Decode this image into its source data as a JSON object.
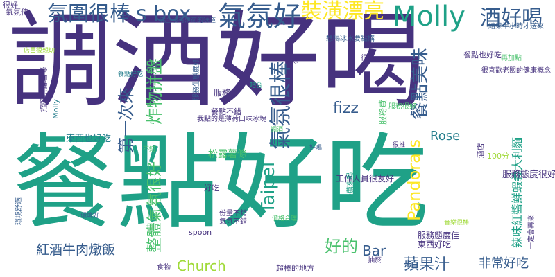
{
  "colors": {
    "background": "#ffffff",
    "purple": "#46327e",
    "navy": "#365c8d",
    "blue": "#277f8e",
    "teal": "#1fa187",
    "green": "#4ac16d",
    "lime": "#a0da39",
    "yellow": "#fde725"
  },
  "words": [
    {
      "text": "調酒好喝",
      "color": "purple"
    },
    {
      "text": "餐點好吃",
      "color": "teal"
    },
    {
      "text": "氛圍很棒",
      "color": "navy"
    },
    {
      "text": "s box",
      "color": "navy"
    },
    {
      "text": "氣氛好",
      "color": "navy"
    },
    {
      "text": "裝潢漂亮",
      "color": "yellow"
    },
    {
      "text": "Molly",
      "color": "teal"
    },
    {
      "text": "酒好喝",
      "color": "navy"
    },
    {
      "text": "很好",
      "color": "purple"
    },
    {
      "text": "氣氛佳",
      "color": "purple"
    },
    {
      "text": "完全沒有薄荷的味道",
      "color": "navy"
    },
    {
      "text": "結果半小時才送來",
      "color": "navy"
    },
    {
      "text": "炸物拼盤",
      "color": "green"
    },
    {
      "text": "第一次來",
      "color": "navy"
    },
    {
      "text": "氣氛很棒",
      "color": "navy"
    },
    {
      "text": "餐點美味",
      "color": "navy"
    },
    {
      "text": "fizz",
      "color": "navy"
    },
    {
      "text": "Pandora s",
      "color": "yellow"
    },
    {
      "text": "Rose",
      "color": "blue"
    },
    {
      "text": "Taipei",
      "color": "teal"
    },
    {
      "text": "整體氣氛很好",
      "color": "green"
    },
    {
      "text": "紅酒牛肉燉飯",
      "color": "navy"
    },
    {
      "text": "Church",
      "color": "lime"
    },
    {
      "text": "好的",
      "color": "green"
    },
    {
      "text": "Bar",
      "color": "navy"
    },
    {
      "text": "蘋果汁",
      "color": "navy"
    },
    {
      "text": "非常好吃",
      "color": "navy"
    },
    {
      "text": "辣味紅醬鮮蝦義大利麵",
      "color": "teal"
    },
    {
      "text": "服務態度很好",
      "color": "purple"
    },
    {
      "text": "工作人員很友好",
      "color": "purple"
    },
    {
      "text": "東西也好吃",
      "color": "blue"
    },
    {
      "text": "東西好吃",
      "color": "purple"
    },
    {
      "text": "服務態度佳",
      "color": "purple"
    },
    {
      "text": "想喝冰水要點購",
      "color": "navy"
    },
    {
      "text": "餐點也好吃",
      "color": "purple"
    },
    {
      "text": "很喜歡老闆的健康概念",
      "color": "purple"
    },
    {
      "text": "服務好",
      "color": "purple"
    },
    {
      "text": "餐點不錯",
      "color": "purple"
    },
    {
      "text": "服務費",
      "color": "green"
    },
    {
      "text": "松露薯條",
      "color": "green"
    },
    {
      "text": "好吃",
      "color": "purple"
    },
    {
      "text": "100分",
      "color": "lime"
    },
    {
      "text": "酒店",
      "color": "purple"
    },
    {
      "text": "spoon",
      "color": "purple"
    },
    {
      "text": "食物",
      "color": "purple"
    },
    {
      "text": "超棒的地方",
      "color": "purple"
    },
    {
      "text": "服務很好",
      "color": "green"
    },
    {
      "text": "我點的是薄荷口味冰塊",
      "color": "purple"
    },
    {
      "text": "服務生態度好",
      "color": "navy"
    },
    {
      "text": "薯條",
      "color": "purple"
    },
    {
      "text": "招牌松露薯條",
      "color": "purple"
    },
    {
      "text": "Molly",
      "color": "blue"
    },
    {
      "text": "份量不錯",
      "color": "purple"
    },
    {
      "text": "氣氛不錯",
      "color": "purple"
    },
    {
      "text": "推薦來喝",
      "color": "teal"
    },
    {
      "text": "一定會再來",
      "color": "purple"
    },
    {
      "text": "再加點",
      "color": "green"
    },
    {
      "text": "很棒",
      "color": "purple"
    },
    {
      "text": "抽菸",
      "color": "purple"
    },
    {
      "text": "環境舒適",
      "color": "navy"
    },
    {
      "text": "店員很親切",
      "color": "lime"
    },
    {
      "text": "餐點好吃",
      "color": "blue"
    },
    {
      "text": "吧台",
      "color": "teal"
    },
    {
      "text": "調酒",
      "color": "green"
    },
    {
      "text": "很推",
      "color": "purple"
    },
    {
      "text": "好喝",
      "color": "navy"
    },
    {
      "text": "不錯",
      "color": "green"
    },
    {
      "text": "環境好",
      "color": "navy"
    },
    {
      "text": "價格合理",
      "color": "green"
    },
    {
      "text": "音樂很棒",
      "color": "lime"
    }
  ]
}
